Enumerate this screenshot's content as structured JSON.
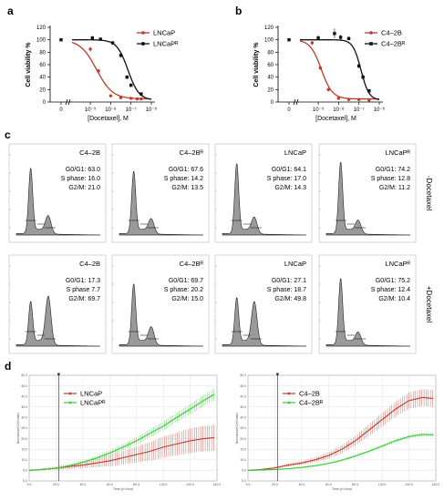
{
  "panels": {
    "a": "a",
    "b": "b",
    "c": "c",
    "d": "d"
  },
  "chart_data": [
    {
      "id": "a",
      "type": "line",
      "ylabel": "Cell viability %",
      "xlabel": "[Docetaxel], M",
      "x_log": true,
      "ylim": [
        0,
        120
      ],
      "y_ticks": [
        "0",
        "20",
        "40",
        "60",
        "80",
        "100",
        "120"
      ],
      "x_ticks": [
        "0",
        "10⁻⁹",
        "10⁻⁸",
        "10⁻⁷",
        "10⁻⁶"
      ],
      "series": [
        {
          "name": "LNCaP",
          "color": "#c0392b",
          "marker": "circle",
          "ic50_log": -8.7,
          "hill": 1.1,
          "points": [
            [
              -10,
              100
            ],
            [
              -9,
              85
            ],
            [
              -8.6,
              50
            ],
            [
              -8,
              10
            ],
            [
              -7.5,
              7
            ],
            [
              -7,
              6
            ],
            [
              -6.7,
              5
            ],
            [
              -6.5,
              5
            ]
          ],
          "err": [
            2,
            4,
            3,
            2,
            1,
            1,
            1,
            1
          ]
        },
        {
          "name": "LNCaPᴿ",
          "color": "#111111",
          "marker": "square",
          "ic50_log": -7.15,
          "hill": 1.6,
          "points": [
            [
              -10,
              100
            ],
            [
              -8.9,
              103
            ],
            [
              -8.5,
              101
            ],
            [
              -7.9,
              95
            ],
            [
              -7.5,
              75
            ],
            [
              -7.2,
              40
            ],
            [
              -7,
              27
            ],
            [
              -6.5,
              13
            ]
          ],
          "err": [
            2,
            3,
            2,
            3,
            4,
            3,
            3,
            2
          ]
        }
      ]
    },
    {
      "id": "b",
      "type": "line",
      "ylabel": "Cell viability %",
      "xlabel": "[Docetaxel], M",
      "x_log": true,
      "ylim": [
        0,
        120
      ],
      "y_ticks": [
        "0",
        "20",
        "40",
        "60",
        "80",
        "100",
        "120"
      ],
      "x_ticks": [
        "0",
        "10⁻⁹",
        "10⁻⁸",
        "10⁻⁷",
        "10⁻⁶"
      ],
      "series": [
        {
          "name": "C4–2B",
          "color": "#c0392b",
          "marker": "circle",
          "ic50_log": -8.85,
          "hill": 1.6,
          "points": [
            [
              -10,
              100
            ],
            [
              -9.3,
              95
            ],
            [
              -8.9,
              55
            ],
            [
              -8.5,
              20
            ],
            [
              -8,
              6
            ],
            [
              -7.5,
              4
            ],
            [
              -7,
              4
            ],
            [
              -6.5,
              3
            ]
          ],
          "err": [
            2,
            3,
            4,
            3,
            1,
            1,
            1,
            1
          ]
        },
        {
          "name": "C4–2Bᴿ",
          "color": "#111111",
          "marker": "square",
          "ic50_log": -6.9,
          "hill": 2.2,
          "points": [
            [
              -10,
              100
            ],
            [
              -9,
              103
            ],
            [
              -8.2,
              110
            ],
            [
              -7.9,
              104
            ],
            [
              -7.5,
              102
            ],
            [
              -7,
              58
            ],
            [
              -6.8,
              40
            ],
            [
              -6.5,
              18
            ]
          ],
          "err": [
            2,
            4,
            8,
            4,
            3,
            4,
            4,
            3
          ]
        }
      ]
    },
    {
      "id": "c",
      "type": "histogram",
      "side_labels": [
        "-Docetaxel",
        "+Docetaxel"
      ],
      "rows": [
        [
          {
            "title": "C4–2B",
            "g0g1": "G0/G1: 63.0",
            "s": "S phase: 16.0",
            "g2m": "G2/M: 21.0",
            "g1": 0.84,
            "g2": 0.22
          },
          {
            "title": "C4–2Bᴿ",
            "g0g1": "G0/G1: 67.6",
            "s": "S phase: 14.2",
            "g2m": "G2/M: 13.5",
            "g1": 0.8,
            "g2": 0.18
          },
          {
            "title": "LNCaP",
            "g0g1": "G0/G1: 64.1",
            "s": "S phase: 17.0",
            "g2m": "G2/M: 14.3",
            "g1": 0.9,
            "g2": 0.2
          },
          {
            "title": "LNCaPᴿ",
            "g0g1": "G0/G1: 74.2",
            "s": "S phase: 12.8",
            "g2m": "G2/M: 11.2",
            "g1": 0.92,
            "g2": 0.16
          }
        ],
        [
          {
            "title": "C4–2B",
            "g0g1": "G0/G1: 17.3",
            "s": "S phase  7.7",
            "g2m": "G2/M: 69.7",
            "g1": 0.55,
            "g2": 0.62
          },
          {
            "title": "C4–2Bᴿ",
            "g0g1": "G0/G1: 69.7",
            "s": "S phase: 20.2",
            "g2m": "G2/M: 15.0",
            "g1": 0.78,
            "g2": 0.22
          },
          {
            "title": "LNCaP",
            "g0g1": "G0/G1: 27.1",
            "s": "S phase: 18.7",
            "g2m": "G2/M: 49.8",
            "g1": 0.6,
            "g2": 0.55
          },
          {
            "title": "LNCaPᴿ",
            "g0g1": "G0/G1: 75.2",
            "s": "S phase: 12.4",
            "g2m": "G2/M: 10.4",
            "g1": 0.85,
            "g2": 0.15
          }
        ]
      ]
    },
    {
      "id": "d1",
      "type": "line",
      "xlabel": "Time (in Hour)",
      "ylabel": "Normalized Cell Index",
      "xlim": [
        0,
        140
      ],
      "ylim": [
        0,
        50
      ],
      "x_ticks": [
        "0.0",
        "20.0",
        "40.0",
        "60.0",
        "80.0",
        "100.0",
        "120.0",
        "140.0"
      ],
      "y_ticks": [
        "0.0",
        "5.0",
        "10.0",
        "15.0",
        "20.0",
        "25.0",
        "30.0",
        "35.0",
        "40.0",
        "45.0",
        "50.0"
      ],
      "series": [
        {
          "name": "LNCaP",
          "color": "#c0392b",
          "x": [
            0,
            10,
            20,
            30,
            40,
            50,
            60,
            70,
            80,
            90,
            100,
            110,
            120,
            130,
            138
          ],
          "y": [
            5.0,
            5.5,
            6.0,
            6.8,
            7.5,
            8.5,
            9.5,
            11,
            12.5,
            14,
            16,
            17.5,
            19,
            20,
            20.5
          ],
          "err": [
            0.3,
            0.5,
            0.8,
            1.2,
            1.6,
            2.0,
            2.6,
            3.2,
            3.8,
            4.4,
            5.0,
            5.4,
            5.8,
            6.0,
            6.2
          ]
        },
        {
          "name": "LNCaPᴿ",
          "color": "#33cc33",
          "x": [
            0,
            10,
            20,
            30,
            40,
            50,
            60,
            70,
            80,
            90,
            100,
            110,
            120,
            130,
            138
          ],
          "y": [
            5.0,
            5.4,
            6.0,
            7.2,
            8.8,
            10.8,
            13.2,
            16,
            19,
            22.5,
            26,
            30,
            34,
            38,
            41
          ],
          "err": [
            0.3,
            0.4,
            0.5,
            0.7,
            0.9,
            1.1,
            1.3,
            1.5,
            1.7,
            1.9,
            2.1,
            2.3,
            2.5,
            2.7,
            2.9
          ]
        }
      ]
    },
    {
      "id": "d2",
      "type": "line",
      "xlabel": "Time (in Hour)",
      "ylabel": "Normalized Cell Index",
      "xlim": [
        0,
        140
      ],
      "ylim": [
        0,
        50
      ],
      "x_ticks": [
        "0.0",
        "20.0",
        "40.0",
        "60.0",
        "80.0",
        "100.0",
        "120.0",
        "140.0"
      ],
      "y_ticks": [
        "0.0",
        "5.0",
        "10.0",
        "15.0",
        "20.0",
        "25.0",
        "30.0",
        "35.0",
        "40.0",
        "45.0",
        "50.0"
      ],
      "series": [
        {
          "name": "C4–2B",
          "color": "#c0392b",
          "x": [
            0,
            10,
            20,
            30,
            40,
            50,
            60,
            70,
            80,
            90,
            100,
            110,
            120,
            130,
            138
          ],
          "y": [
            5.0,
            5.4,
            6.2,
            7.5,
            8.5,
            10,
            12,
            15,
            19,
            24,
            29,
            34,
            38,
            39.5,
            39
          ],
          "err": [
            0.3,
            0.4,
            0.5,
            0.7,
            0.9,
            1.2,
            1.5,
            1.9,
            2.3,
            2.8,
            3.2,
            3.5,
            3.8,
            4.0,
            4.0
          ]
        },
        {
          "name": "C4–2Bᴿ",
          "color": "#33cc33",
          "x": [
            0,
            10,
            20,
            30,
            40,
            50,
            60,
            70,
            80,
            90,
            100,
            110,
            120,
            130,
            138
          ],
          "y": [
            5.0,
            5.2,
            5.4,
            5.8,
            6.4,
            7.2,
            8.3,
            9.8,
            11.8,
            14,
            16.5,
            19,
            21,
            22,
            21.8
          ],
          "err": [
            0.2,
            0.3,
            0.3,
            0.3,
            0.4,
            0.4,
            0.5,
            0.5,
            0.6,
            0.7,
            0.8,
            0.8,
            0.9,
            0.9,
            0.9
          ]
        }
      ]
    }
  ]
}
